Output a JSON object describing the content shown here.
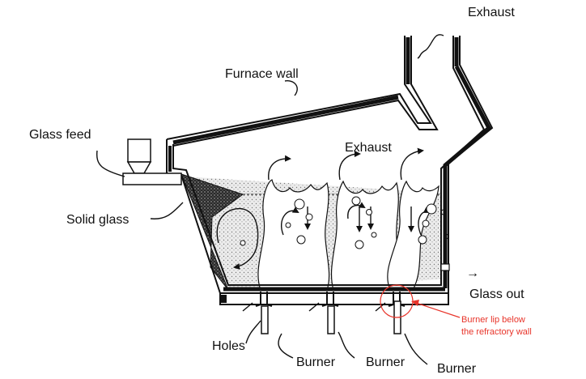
{
  "labels": {
    "exhaust_top": "Exhaust",
    "furnace_wall": "Furnace wall",
    "glass_feed": "Glass feed",
    "exhaust_mid": "Exhaust",
    "solid_glass": "Solid glass",
    "glass_out": "Glass out",
    "holes": "Holes",
    "burner_1": "Burner",
    "burner_2": "Burner",
    "burner_3": "Burner"
  },
  "annotation": {
    "line1": "Burner lip below",
    "line2": "the refractory wall",
    "color": "#e8342a"
  },
  "icons": {
    "glass_out_arrow": "→"
  },
  "colors": {
    "ink": "#111111",
    "glass_fill": "#e6e6e6",
    "solid_glass_fill": "#333333"
  }
}
